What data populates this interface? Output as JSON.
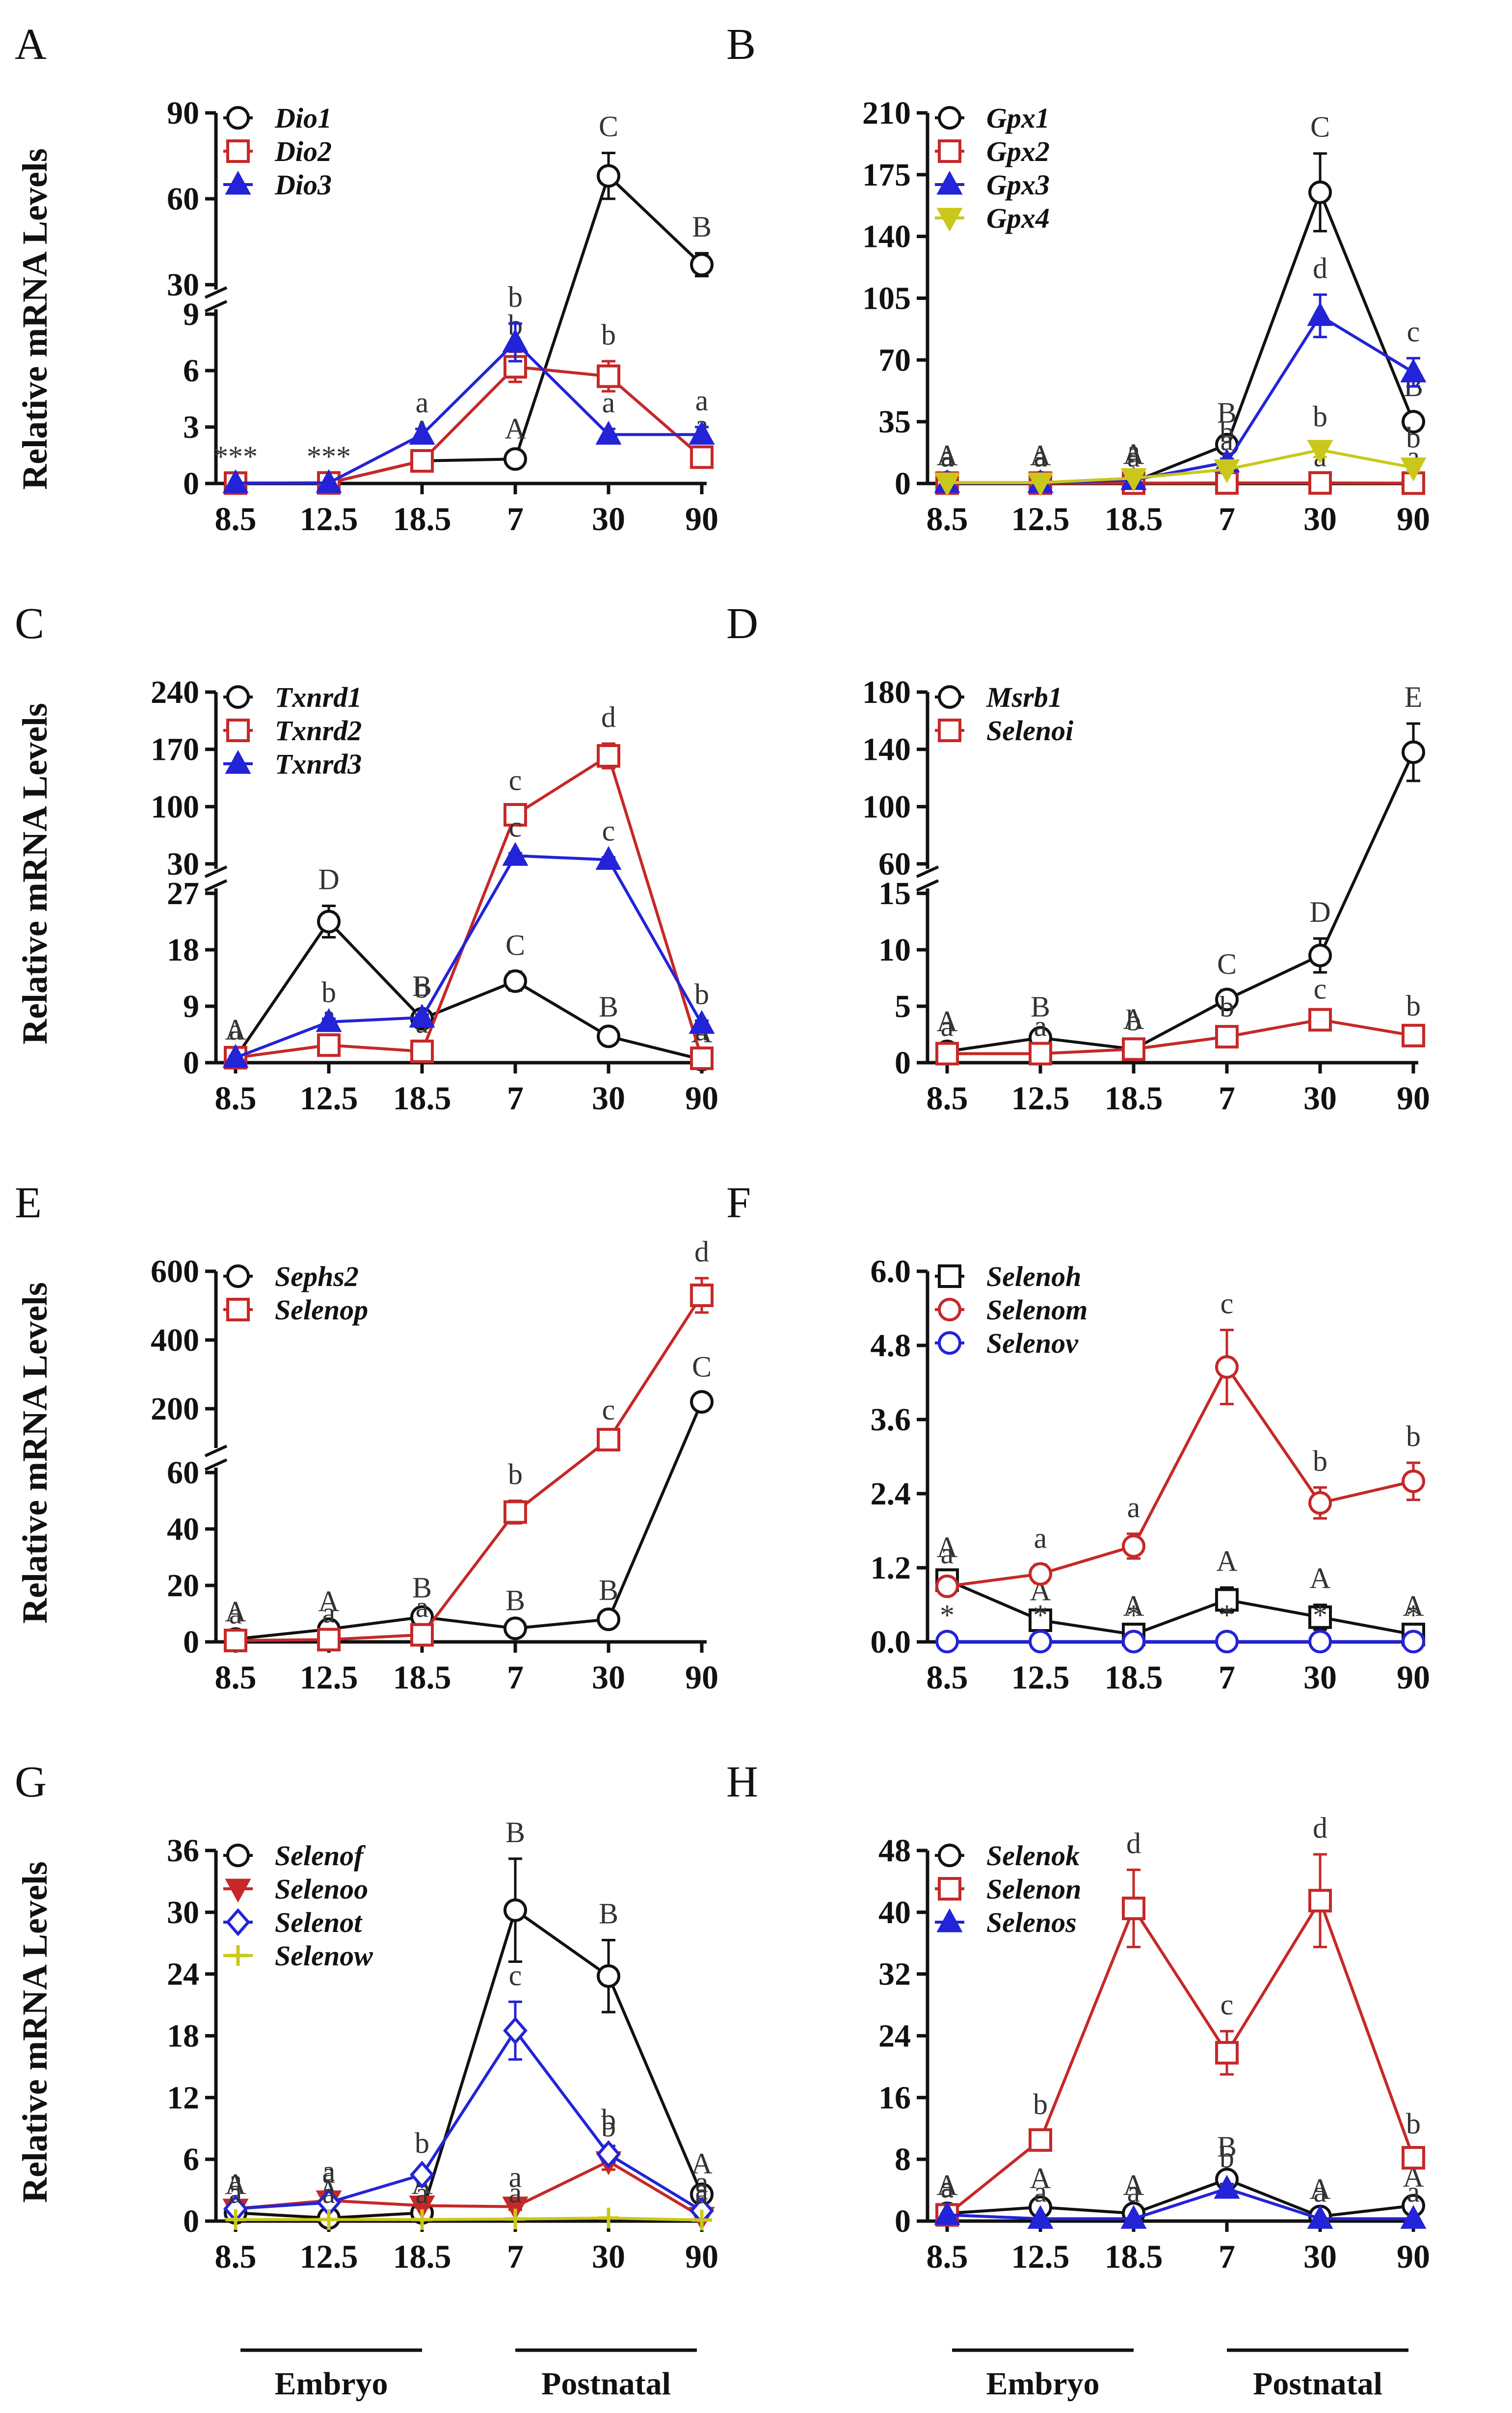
{
  "figure": {
    "ylabel": "Relative mRNA Levels",
    "group_labels": {
      "embryo": "Embryo",
      "postnatal": "Postnatal"
    }
  },
  "colors": {
    "black": "#111111",
    "red": "#c62828",
    "blue": "#2323d8",
    "yellow": "#c9c81a"
  },
  "chart_data": [
    {
      "panel": "A",
      "type": "line",
      "broken_axis": true,
      "ylabel": "Relative mRNA Levels",
      "categories": [
        "8.5",
        "12.5",
        "18.5",
        "7",
        "30",
        "90"
      ],
      "lower": {
        "ylim": [
          0,
          9
        ],
        "ticks": [
          0,
          3,
          6,
          9
        ],
        "ticklabels": [
          "0",
          "3",
          "6",
          "9"
        ]
      },
      "upper": {
        "ylim": [
          30,
          90
        ],
        "ticks": [
          30,
          60,
          90
        ],
        "ticklabels": [
          "30",
          "60",
          "90"
        ]
      },
      "series": [
        {
          "name": "Dio1",
          "color": "#111111",
          "marker": "circle",
          "values": [
            0.02,
            0.03,
            1.2,
            1.3,
            68,
            37
          ],
          "errors": [
            0,
            0,
            0.2,
            0.2,
            8,
            4
          ],
          "letters": [
            "***",
            "***",
            "A",
            "A",
            "C",
            "B"
          ]
        },
        {
          "name": "Dio2",
          "color": "#c62828",
          "marker": "square",
          "values": [
            0.02,
            0.03,
            1.2,
            6.2,
            5.7,
            1.4
          ],
          "errors": [
            0,
            0,
            0.2,
            0.8,
            0.8,
            0.3
          ],
          "letters": [
            "",
            "",
            "a",
            "b",
            "b",
            "a"
          ]
        },
        {
          "name": "Dio3",
          "color": "#2323d8",
          "marker": "triangle-up",
          "values": [
            0.02,
            0.03,
            2.6,
            7.5,
            2.6,
            2.6
          ],
          "errors": [
            0,
            0,
            0.3,
            1,
            0.3,
            0.4
          ],
          "letters": [
            "",
            "",
            "a",
            "b",
            "a",
            "a"
          ]
        }
      ]
    },
    {
      "panel": "B",
      "type": "line",
      "broken_axis": false,
      "ylabel": "",
      "categories": [
        "8.5",
        "12.5",
        "18.5",
        "7",
        "30",
        "90"
      ],
      "ylim": [
        0,
        210
      ],
      "ticks": [
        0,
        35,
        70,
        105,
        140,
        175,
        210
      ],
      "ticklabels": [
        "0",
        "35",
        "70",
        "105",
        "140",
        "175",
        "210"
      ],
      "series": [
        {
          "name": "Gpx1",
          "color": "#111111",
          "marker": "circle",
          "values": [
            0.5,
            0.5,
            1,
            22,
            165,
            35
          ],
          "errors": [
            0.3,
            0.3,
            0.5,
            3,
            22,
            5
          ],
          "letters": [
            "A",
            "A",
            "A",
            "B",
            "C",
            "B"
          ]
        },
        {
          "name": "Gpx2",
          "color": "#c62828",
          "marker": "square",
          "values": [
            0.2,
            0.2,
            0.2,
            0.3,
            0.3,
            0.2
          ],
          "errors": [
            0,
            0,
            0,
            0,
            0,
            0
          ],
          "letters": [
            "a",
            "a",
            "a",
            "a",
            "a",
            "a"
          ]
        },
        {
          "name": "Gpx3",
          "color": "#2323d8",
          "marker": "triangle-up",
          "values": [
            0.3,
            0.3,
            2,
            12,
            95,
            63
          ],
          "errors": [
            0.1,
            0.1,
            0.5,
            2,
            12,
            8
          ],
          "letters": [
            "a",
            "a",
            "a",
            "b",
            "d",
            "c"
          ]
        },
        {
          "name": "Gpx4",
          "color": "#c9c81a",
          "marker": "triangle-down",
          "values": [
            0.5,
            0.5,
            3,
            8,
            19,
            9
          ],
          "errors": [
            0.1,
            0.1,
            0.5,
            1.5,
            4,
            2
          ],
          "letters": [
            "a",
            "a",
            "a",
            "a",
            "b",
            "b"
          ]
        }
      ]
    },
    {
      "panel": "C",
      "type": "line",
      "broken_axis": true,
      "ylabel": "Relative mRNA Levels",
      "categories": [
        "8.5",
        "12.5",
        "18.5",
        "7",
        "30",
        "90"
      ],
      "lower": {
        "ylim": [
          0,
          27
        ],
        "ticks": [
          0,
          9,
          18,
          27
        ],
        "ticklabels": [
          "0",
          "9",
          "18",
          "27"
        ]
      },
      "upper": {
        "ylim": [
          30,
          240
        ],
        "ticks": [
          30,
          100,
          170,
          240
        ],
        "ticklabels": [
          "30",
          "100",
          "170",
          "240"
        ]
      },
      "series": [
        {
          "name": "Txnrd1",
          "color": "#111111",
          "marker": "circle",
          "values": [
            0.8,
            22.5,
            7,
            13,
            4.2,
            0.5
          ],
          "errors": [
            0.2,
            2.5,
            1,
            1.5,
            0.5,
            0.1
          ],
          "letters": [
            "A",
            "D",
            "B",
            "C",
            "B",
            "A"
          ]
        },
        {
          "name": "Txnrd2",
          "color": "#c62828",
          "marker": "square",
          "values": [
            0.8,
            2.8,
            1.8,
            90,
            162,
            0.7
          ],
          "errors": [
            0.2,
            0.5,
            0.3,
            10,
            15,
            0.2
          ],
          "letters": [
            "a",
            "a",
            "a",
            "c",
            "d",
            "a"
          ]
        },
        {
          "name": "Txnrd3",
          "color": "#2323d8",
          "marker": "triangle-up",
          "values": [
            0.8,
            6.5,
            7.2,
            40,
            35,
            6.2
          ],
          "errors": [
            0.2,
            0.5,
            0.5,
            3,
            3,
            0.5
          ],
          "letters": [
            "a",
            "b",
            "b",
            "c",
            "c",
            "b"
          ]
        }
      ]
    },
    {
      "panel": "D",
      "type": "line",
      "broken_axis": true,
      "ylabel": "",
      "categories": [
        "8.5",
        "12.5",
        "18.5",
        "7",
        "30",
        "90"
      ],
      "lower": {
        "ylim": [
          0,
          15
        ],
        "ticks": [
          0,
          5,
          10,
          15
        ],
        "ticklabels": [
          "0",
          "5",
          "10",
          "15"
        ]
      },
      "upper": {
        "ylim": [
          60,
          180
        ],
        "ticks": [
          60,
          100,
          140,
          180
        ],
        "ticklabels": [
          "60",
          "100",
          "140",
          "180"
        ]
      },
      "series": [
        {
          "name": "Msrb1",
          "color": "#111111",
          "marker": "circle",
          "values": [
            1,
            2.2,
            1.2,
            5.6,
            9.5,
            138
          ],
          "errors": [
            0.3,
            0.4,
            0.3,
            0.8,
            1.5,
            20
          ],
          "letters": [
            "A",
            "B",
            "A",
            "C",
            "D",
            "E"
          ]
        },
        {
          "name": "Selenoi",
          "color": "#c62828",
          "marker": "square",
          "values": [
            0.8,
            0.8,
            1.2,
            2.3,
            3.8,
            2.4
          ],
          "errors": [
            0.1,
            0.1,
            0.2,
            0.3,
            0.4,
            0.3
          ],
          "letters": [
            "a",
            "a",
            "b",
            "b",
            "c",
            "b"
          ]
        }
      ]
    },
    {
      "panel": "E",
      "type": "line",
      "broken_axis": true,
      "ylabel": "Relative mRNA Levels",
      "categories": [
        "8.5",
        "12.5",
        "18.5",
        "7",
        "30",
        "90"
      ],
      "lower": {
        "ylim": [
          0,
          60
        ],
        "ticks": [
          0,
          20,
          40,
          60
        ],
        "ticklabels": [
          "0",
          "20",
          "40",
          "60"
        ]
      },
      "upper": {
        "ylim": [
          100,
          600
        ],
        "ticks": [
          200,
          400,
          600
        ],
        "ticklabels": [
          "200",
          "400",
          "600"
        ]
      },
      "series": [
        {
          "name": "Sephs2",
          "color": "#111111",
          "marker": "circle",
          "values": [
            1,
            4.5,
            8.8,
            4.8,
            8,
            220
          ],
          "errors": [
            0.3,
            0.5,
            1,
            0.5,
            1,
            25
          ],
          "letters": [
            "A",
            "A",
            "B",
            "B",
            "B",
            "C"
          ]
        },
        {
          "name": "Selenop",
          "color": "#c62828",
          "marker": "square",
          "values": [
            0.5,
            0.8,
            2.5,
            46,
            110,
            530
          ],
          "errors": [
            0.1,
            0.2,
            0.5,
            4,
            10,
            50
          ],
          "letters": [
            "a",
            "a",
            "a",
            "b",
            "c",
            "d"
          ]
        }
      ]
    },
    {
      "panel": "F",
      "type": "line",
      "broken_axis": false,
      "ylabel": "",
      "categories": [
        "8.5",
        "12.5",
        "18.5",
        "7",
        "30",
        "90"
      ],
      "ylim": [
        0,
        6
      ],
      "ticks": [
        0,
        1.2,
        2.4,
        3.6,
        4.8,
        6.0
      ],
      "ticklabels": [
        "0.0",
        "1.2",
        "2.4",
        "3.6",
        "4.8",
        "6.0"
      ],
      "series": [
        {
          "name": "Selenoh",
          "color": "#111111",
          "marker": "square",
          "values": [
            1,
            0.35,
            0.12,
            0.68,
            0.4,
            0.12
          ],
          "errors": [
            0.1,
            0.05,
            0.03,
            0.2,
            0.2,
            0.03
          ],
          "letters": [
            "A",
            "A",
            "A",
            "A",
            "A",
            "A"
          ]
        },
        {
          "name": "Selenom",
          "color": "#c62828",
          "marker": "circle",
          "values": [
            0.9,
            1.1,
            1.55,
            4.45,
            2.25,
            2.6
          ],
          "errors": [
            0.1,
            0.15,
            0.2,
            0.6,
            0.25,
            0.3
          ],
          "letters": [
            "a",
            "a",
            "a",
            "c",
            "b",
            "b"
          ]
        },
        {
          "name": "Selenov",
          "color": "#2323d8",
          "marker": "circle",
          "values": [
            0.005,
            0.005,
            0.005,
            0.005,
            0.005,
            0.005
          ],
          "errors": [
            0,
            0,
            0,
            0,
            0,
            0
          ],
          "letters": [
            "*",
            "*",
            "*",
            "*",
            "*",
            "*"
          ]
        }
      ]
    },
    {
      "panel": "G",
      "type": "line",
      "broken_axis": false,
      "ylabel": "Relative mRNA Levels",
      "categories": [
        "8.5",
        "12.5",
        "18.5",
        "7",
        "30",
        "90"
      ],
      "ylim": [
        0,
        36
      ],
      "ticks": [
        0,
        6,
        12,
        18,
        24,
        30,
        36
      ],
      "ticklabels": [
        "0",
        "6",
        "12",
        "18",
        "24",
        "30",
        "36"
      ],
      "series": [
        {
          "name": "Selenof",
          "color": "#111111",
          "marker": "circle",
          "values": [
            0.8,
            0.3,
            0.8,
            30.2,
            23.8,
            2.6
          ],
          "errors": [
            0.2,
            0.1,
            0.2,
            5,
            3.5,
            0.4
          ],
          "letters": [
            "A",
            "A",
            "A",
            "B",
            "B",
            "A"
          ]
        },
        {
          "name": "Selenoo",
          "color": "#c62828",
          "marker": "triangle-down",
          "values": [
            1.2,
            2,
            1.5,
            1.4,
            5.8,
            0.4
          ],
          "errors": [
            0.2,
            0.3,
            0.2,
            0.3,
            0.8,
            0.1
          ],
          "letters": [
            "a",
            "a",
            "a",
            "a",
            "b",
            "a"
          ]
        },
        {
          "name": "Selenot",
          "color": "#2323d8",
          "marker": "diamond",
          "values": [
            1.2,
            1.8,
            4.5,
            18.5,
            6.5,
            1
          ],
          "errors": [
            0.2,
            0.3,
            0.5,
            2.8,
            0.8,
            0.2
          ],
          "letters": [
            "a",
            "a",
            "b",
            "c",
            "b",
            "a"
          ]
        },
        {
          "name": "Selenow",
          "color": "#c9c81a",
          "marker": "plus",
          "values": [
            0.15,
            0.15,
            0.15,
            0.2,
            0.3,
            0.1
          ],
          "errors": [
            0,
            0,
            0,
            0,
            0,
            0
          ],
          "letters": [
            "a",
            "a",
            "a",
            "a",
            "",
            "a"
          ]
        }
      ]
    },
    {
      "panel": "H",
      "type": "line",
      "broken_axis": false,
      "ylabel": "",
      "categories": [
        "8.5",
        "12.5",
        "18.5",
        "7",
        "30",
        "90"
      ],
      "ylim": [
        0,
        48
      ],
      "ticks": [
        0,
        8,
        16,
        24,
        32,
        40,
        48
      ],
      "ticklabels": [
        "0",
        "8",
        "16",
        "24",
        "32",
        "40",
        "48"
      ],
      "series": [
        {
          "name": "Selenok",
          "color": "#111111",
          "marker": "circle",
          "values": [
            1,
            1.8,
            1,
            5.4,
            0.6,
            2
          ],
          "errors": [
            0.2,
            0.3,
            0.2,
            0.8,
            0.1,
            0.3
          ],
          "letters": [
            "A",
            "A",
            "A",
            "B",
            "A",
            "A"
          ]
        },
        {
          "name": "Selenon",
          "color": "#c62828",
          "marker": "square",
          "values": [
            0.8,
            10.5,
            40.5,
            21.8,
            41.5,
            8.2
          ],
          "errors": [
            0.2,
            1.2,
            5,
            2.8,
            6,
            1
          ],
          "letters": [
            "a",
            "b",
            "d",
            "c",
            "d",
            "b"
          ]
        },
        {
          "name": "Selenos",
          "color": "#2323d8",
          "marker": "triangle-up",
          "values": [
            0.8,
            0.3,
            0.3,
            4.2,
            0.3,
            0.3
          ],
          "errors": [
            0.1,
            0.05,
            0.05,
            0.6,
            0.05,
            0.05
          ],
          "letters": [
            "a",
            "a",
            "a",
            "b",
            "a",
            "a"
          ]
        }
      ]
    }
  ]
}
